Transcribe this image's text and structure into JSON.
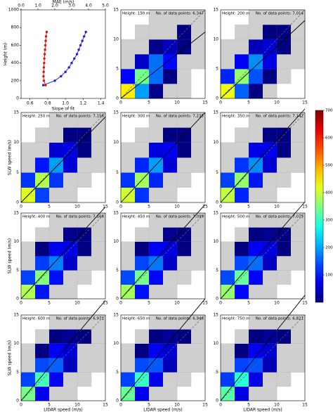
{
  "chart_data": [
    {
      "type": "line",
      "ylabel": "Height (m)",
      "xlabel": "Slope of fit",
      "x2label": "MAE (m/s)",
      "ylim": [
        0,
        1000
      ],
      "yticks": [
        0,
        200,
        400,
        600,
        800,
        1000
      ],
      "xlim": [
        0.5,
        1.45
      ],
      "xticks": [
        0.6,
        0.8,
        {
          "value": 1,
          "label": "1.0"
        },
        1.2,
        1.4
      ],
      "x2lim": [
        0,
        5
      ],
      "x2ticks": [
        {
          "value": 0,
          "label": "0.0"
        },
        {
          "value": 1,
          "label": "1.0"
        },
        {
          "value": 2,
          "label": "2.0"
        },
        {
          "value": 3,
          "label": "3.0"
        },
        {
          "value": 4,
          "label": "4.0"
        },
        {
          "value": 5,
          "label": "5.0"
        }
      ],
      "y": [
        150,
        200,
        250,
        300,
        350,
        400,
        450,
        500,
        550,
        600,
        650,
        700,
        750
      ],
      "series": [
        {
          "color": "#1f1fd6",
          "axis": "x",
          "values": [
            0.75,
            0.88,
            0.95,
            1.0,
            1.04,
            1.07,
            1.1,
            1.13,
            1.15,
            1.17,
            1.19,
            1.21,
            1.23
          ]
        },
        {
          "color": "#e01010",
          "axis": "x2",
          "values": [
            1.45,
            1.35,
            1.33,
            1.34,
            1.35,
            1.37,
            1.38,
            1.4,
            1.42,
            1.44,
            1.46,
            1.48,
            1.52
          ]
        }
      ]
    },
    {
      "type": "heatmap",
      "title": "Height: 150 m",
      "subtitle": "No. of data points: 6,347",
      "fit_slope": 0.75,
      "xlim": [
        0,
        15
      ],
      "ylim": [
        0,
        15
      ],
      "xticks": [
        0,
        5,
        10,
        15
      ],
      "yticks": [
        0,
        5,
        10,
        15
      ],
      "values": [
        [
          460,
          220,
          40,
          6,
          2,
          null
        ],
        [
          120,
          360,
          190,
          30,
          4,
          null
        ],
        [
          8,
          80,
          190,
          120,
          15,
          2
        ],
        [
          2,
          10,
          40,
          70,
          35,
          5
        ],
        [
          null,
          2,
          8,
          18,
          20,
          8
        ],
        [
          null,
          null,
          2,
          5,
          6,
          4
        ]
      ]
    },
    {
      "type": "heatmap",
      "title": "Height: 200 m",
      "subtitle": "No. of data points: 7,014",
      "fit_slope": 0.88,
      "xlim": [
        0,
        15
      ],
      "ylim": [
        0,
        15
      ],
      "xticks": [
        0,
        5,
        10,
        15
      ],
      "yticks": [
        0,
        5,
        10,
        15
      ],
      "values": [
        [
          440,
          180,
          25,
          5,
          null,
          null
        ],
        [
          140,
          380,
          170,
          20,
          3,
          null
        ],
        [
          10,
          110,
          210,
          100,
          10,
          2
        ],
        [
          3,
          12,
          70,
          90,
          30,
          4
        ],
        [
          null,
          3,
          10,
          25,
          22,
          6
        ],
        [
          null,
          null,
          3,
          6,
          7,
          4
        ]
      ]
    },
    {
      "type": "heatmap",
      "title": "Height: 250 m",
      "subtitle": "No. of data points: 7,156",
      "ylabel": "SLW speed (m/s)",
      "fit_slope": 0.95,
      "xlim": [
        0,
        15
      ],
      "ylim": [
        0,
        15
      ],
      "xticks": [
        0,
        5,
        10,
        15
      ],
      "yticks": [
        0,
        5,
        10,
        15
      ],
      "values": [
        [
          430,
          160,
          18,
          4,
          null,
          null
        ],
        [
          150,
          400,
          150,
          15,
          3,
          null
        ],
        [
          12,
          130,
          220,
          90,
          8,
          2
        ],
        [
          3,
          15,
          85,
          100,
          25,
          3
        ],
        [
          null,
          4,
          12,
          30,
          20,
          5
        ],
        [
          null,
          null,
          3,
          6,
          8,
          4
        ]
      ]
    },
    {
      "type": "heatmap",
      "title": "Height: 300 m",
      "subtitle": "No. of data points: 7,235",
      "fit_slope": 1.0,
      "xlim": [
        0,
        15
      ],
      "ylim": [
        0,
        15
      ],
      "xticks": [
        0,
        5,
        10,
        15
      ],
      "yticks": [
        0,
        5,
        10,
        15
      ],
      "values": [
        [
          420,
          150,
          12,
          4,
          null,
          null
        ],
        [
          150,
          390,
          140,
          12,
          3,
          null
        ],
        [
          12,
          140,
          220,
          90,
          8,
          2
        ],
        [
          3,
          15,
          95,
          110,
          25,
          3
        ],
        [
          null,
          4,
          12,
          35,
          22,
          5
        ],
        [
          null,
          null,
          3,
          7,
          9,
          4
        ]
      ]
    },
    {
      "type": "heatmap",
      "title": "Height: 350 m",
      "subtitle": "No. of data points: 7,142",
      "fit_slope": 1.04,
      "xlim": [
        0,
        15
      ],
      "ylim": [
        0,
        15
      ],
      "xticks": [
        0,
        5,
        10,
        15
      ],
      "yticks": [
        0,
        5,
        10,
        15
      ],
      "values": [
        [
          410,
          140,
          10,
          3,
          null,
          null
        ],
        [
          160,
          380,
          130,
          10,
          2,
          null
        ],
        [
          14,
          150,
          210,
          85,
          7,
          2
        ],
        [
          4,
          18,
          100,
          105,
          22,
          3
        ],
        [
          null,
          5,
          15,
          38,
          22,
          5
        ],
        [
          null,
          null,
          4,
          8,
          10,
          4
        ]
      ]
    },
    {
      "type": "heatmap",
      "title": "Height: 400 m",
      "subtitle": "No. of data points: 7,166",
      "ylabel": "SLW speed (m/s)",
      "fit_slope": 1.07,
      "xlim": [
        0,
        15
      ],
      "ylim": [
        0,
        15
      ],
      "xticks": [
        0,
        5,
        10,
        15
      ],
      "yticks": [
        0,
        5,
        10,
        15
      ],
      "values": [
        [
          400,
          130,
          10,
          3,
          null,
          null
        ],
        [
          160,
          370,
          125,
          10,
          2,
          null
        ],
        [
          15,
          155,
          200,
          80,
          7,
          2
        ],
        [
          4,
          20,
          105,
          100,
          22,
          3
        ],
        [
          null,
          5,
          16,
          40,
          24,
          5
        ],
        [
          null,
          null,
          4,
          9,
          11,
          5
        ]
      ]
    },
    {
      "type": "heatmap",
      "title": "Height: 450 m",
      "subtitle": "No. of data points: 7,099",
      "fit_slope": 1.1,
      "xlim": [
        0,
        15
      ],
      "ylim": [
        0,
        15
      ],
      "xticks": [
        0,
        5,
        10,
        15
      ],
      "yticks": [
        0,
        5,
        10,
        15
      ],
      "values": [
        [
          390,
          125,
          9,
          3,
          null,
          null
        ],
        [
          165,
          360,
          120,
          9,
          2,
          null
        ],
        [
          16,
          160,
          195,
          78,
          6,
          2
        ],
        [
          4,
          22,
          108,
          98,
          20,
          3
        ],
        [
          null,
          6,
          18,
          42,
          25,
          5
        ],
        [
          null,
          null,
          5,
          10,
          12,
          5
        ]
      ]
    },
    {
      "type": "heatmap",
      "title": "Height: 500 m",
      "subtitle": "No. of data points: 7,075",
      "fit_slope": 1.13,
      "xlim": [
        0,
        15
      ],
      "ylim": [
        0,
        15
      ],
      "xticks": [
        0,
        5,
        10,
        15
      ],
      "yticks": [
        0,
        5,
        10,
        15
      ],
      "values": [
        [
          380,
          120,
          8,
          3,
          null,
          null
        ],
        [
          165,
          350,
          115,
          9,
          2,
          null
        ],
        [
          17,
          165,
          190,
          75,
          6,
          2
        ],
        [
          5,
          24,
          110,
          95,
          20,
          3
        ],
        [
          null,
          6,
          20,
          44,
          26,
          6
        ],
        [
          null,
          null,
          5,
          11,
          13,
          6
        ]
      ]
    },
    {
      "type": "heatmap",
      "title": "Height: 600 m",
      "subtitle": "No. of data points: 6,971",
      "ylabel": "SLW speed (m/s)",
      "xlabel": "LIDAR speed (m/s)",
      "fit_slope": 1.17,
      "xlim": [
        0,
        15
      ],
      "ylim": [
        0,
        15
      ],
      "xticks": [
        0,
        5,
        10,
        15
      ],
      "yticks": [
        0,
        5,
        10,
        15
      ],
      "values": [
        [
          360,
          110,
          7,
          2,
          null,
          null
        ],
        [
          160,
          330,
          110,
          8,
          2,
          null
        ],
        [
          18,
          165,
          180,
          72,
          6,
          2
        ],
        [
          5,
          26,
          110,
          90,
          18,
          3
        ],
        [
          null,
          7,
          22,
          46,
          28,
          6
        ],
        [
          null,
          null,
          6,
          12,
          14,
          6
        ]
      ]
    },
    {
      "type": "heatmap",
      "title": "Height: 650 m",
      "subtitle": "No. of data points: 6,946",
      "xlabel": "LIDAR speed (m/s)",
      "fit_slope": 1.19,
      "xlim": [
        0,
        15
      ],
      "ylim": [
        0,
        15
      ],
      "xticks": [
        0,
        5,
        10,
        15
      ],
      "yticks": [
        0,
        5,
        10,
        15
      ],
      "values": [
        [
          350,
          105,
          7,
          2,
          null,
          null
        ],
        [
          160,
          320,
          105,
          8,
          2,
          null
        ],
        [
          18,
          165,
          175,
          70,
          6,
          2
        ],
        [
          5,
          27,
          110,
          88,
          18,
          3
        ],
        [
          null,
          7,
          23,
          48,
          28,
          7
        ],
        [
          null,
          null,
          6,
          13,
          15,
          7
        ]
      ]
    },
    {
      "type": "heatmap",
      "title": "Height: 750 m",
      "subtitle": "No. of data points: 6,821",
      "xlabel": "LIDAR speed (m/s)",
      "fit_slope": 1.23,
      "xlim": [
        0,
        15
      ],
      "ylim": [
        0,
        15
      ],
      "xticks": [
        0,
        5,
        10,
        15
      ],
      "yticks": [
        0,
        5,
        10,
        15
      ],
      "values": [
        [
          340,
          100,
          6,
          2,
          null,
          null
        ],
        [
          155,
          310,
          100,
          7,
          2,
          null
        ],
        [
          18,
          160,
          170,
          68,
          5,
          2
        ],
        [
          6,
          28,
          108,
          85,
          17,
          3
        ],
        [
          null,
          8,
          24,
          50,
          30,
          7
        ],
        [
          null,
          null,
          7,
          14,
          16,
          7
        ]
      ]
    }
  ],
  "colorbar": {
    "lim": [
      0,
      700
    ],
    "ticks": [
      100,
      200,
      300,
      400,
      500,
      600,
      700
    ]
  }
}
